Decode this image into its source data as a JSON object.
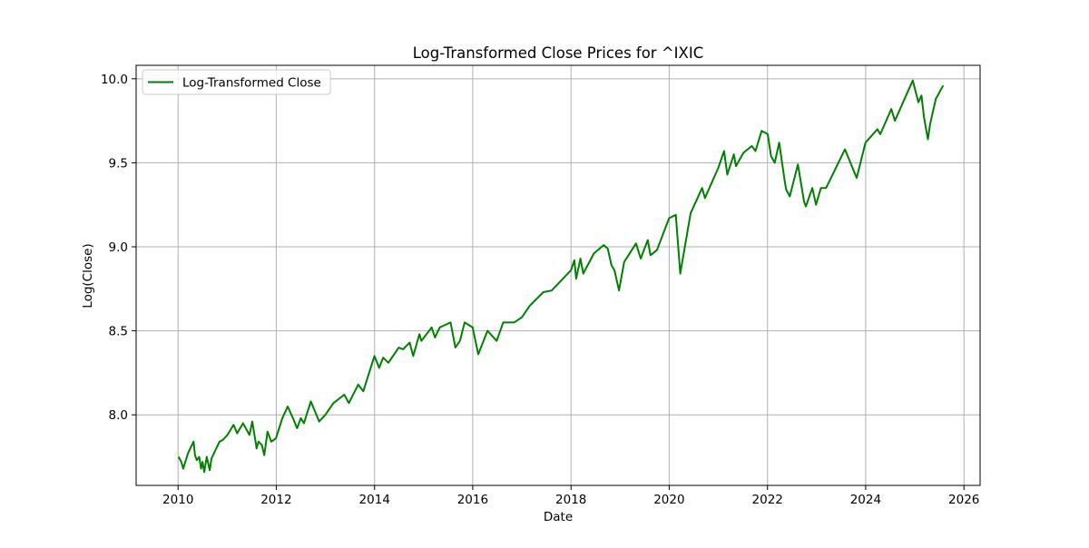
{
  "chart_data": {
    "type": "line",
    "title": "Log-Transformed Close Prices for ^IXIC",
    "xlabel": "Date",
    "ylabel": "Log(Close)",
    "xlim": [
      "2009-02-23",
      "2026-05-01"
    ],
    "ylim": [
      7.58,
      10.08
    ],
    "grid": true,
    "legend_position": "top-left",
    "x_ticks": [
      "2010",
      "2012",
      "2014",
      "2016",
      "2018",
      "2020",
      "2022",
      "2024",
      "2026"
    ],
    "y_ticks": [
      "8.0",
      "8.5",
      "9.0",
      "9.5",
      "10.0"
    ],
    "colors": {
      "line": "#008000",
      "grid": "#b0b0b0",
      "axes": "#000000",
      "legend_border": "#cccccc"
    },
    "series": [
      {
        "name": "Log-Transformed Close",
        "x": [
          "2010-01-04",
          "2010-01-25",
          "2010-02-08",
          "2010-03-15",
          "2010-04-01",
          "2010-04-26",
          "2010-05-07",
          "2010-05-20",
          "2010-06-07",
          "2010-06-21",
          "2010-07-02",
          "2010-07-15",
          "2010-08-02",
          "2010-08-24",
          "2010-09-06",
          "2010-09-30",
          "2010-11-05",
          "2010-11-29",
          "2011-01-03",
          "2011-02-18",
          "2011-03-16",
          "2011-04-29",
          "2011-06-16",
          "2011-07-07",
          "2011-08-08",
          "2011-08-22",
          "2011-09-16",
          "2011-10-04",
          "2011-10-28",
          "2011-11-25",
          "2011-12-30",
          "2012-02-15",
          "2012-03-26",
          "2012-05-04",
          "2012-06-04",
          "2012-07-02",
          "2012-07-25",
          "2012-09-14",
          "2012-11-15",
          "2012-12-31",
          "2013-03-01",
          "2013-05-21",
          "2013-06-24",
          "2013-09-01",
          "2013-10-09",
          "2013-12-31",
          "2014-02-04",
          "2014-03-06",
          "2014-04-14",
          "2014-06-30",
          "2014-08-01",
          "2014-09-19",
          "2014-10-15",
          "2014-12-01",
          "2014-12-16",
          "2015-03-02",
          "2015-03-26",
          "2015-05-01",
          "2015-07-20",
          "2015-08-25",
          "2015-09-28",
          "2015-11-02",
          "2015-12-31",
          "2016-02-11",
          "2016-04-20",
          "2016-06-27",
          "2016-08-15",
          "2016-11-04",
          "2016-12-31",
          "2017-03-01",
          "2017-06-09",
          "2017-08-10",
          "2017-12-31",
          "2018-01-26",
          "2018-02-08",
          "2018-03-12",
          "2018-04-02",
          "2018-06-20",
          "2018-08-31",
          "2018-10-01",
          "2018-10-29",
          "2018-11-20",
          "2018-12-24",
          "2019-01-31",
          "2019-04-30",
          "2019-06-03",
          "2019-07-26",
          "2019-08-15",
          "2019-10-02",
          "2019-12-31",
          "2020-02-19",
          "2020-03-23",
          "2020-06-08",
          "2020-09-02",
          "2020-09-23",
          "2020-12-31",
          "2021-02-12",
          "2021-03-08",
          "2021-04-26",
          "2021-05-12",
          "2021-07-07",
          "2021-09-07",
          "2021-10-04",
          "2021-11-19",
          "2022-01-03",
          "2022-01-27",
          "2022-02-24",
          "2022-03-29",
          "2022-05-11",
          "2022-05-20",
          "2022-06-16",
          "2022-08-15",
          "2022-09-30",
          "2022-10-13",
          "2022-11-30",
          "2022-12-28",
          "2023-02-02",
          "2023-03-13",
          "2023-06-30",
          "2023-07-31",
          "2023-10-26",
          "2023-12-31",
          "2024-03-28",
          "2024-04-19",
          "2024-07-10",
          "2024-08-05",
          "2024-12-16",
          "2025-01-27",
          "2025-02-19",
          "2025-03-10",
          "2025-04-08",
          "2025-04-24",
          "2025-06-06",
          "2025-07-31"
        ],
        "values": [
          7.75,
          7.72,
          7.68,
          7.77,
          7.8,
          7.84,
          7.76,
          7.73,
          7.75,
          7.68,
          7.72,
          7.66,
          7.75,
          7.67,
          7.74,
          7.78,
          7.84,
          7.85,
          7.88,
          7.94,
          7.89,
          7.95,
          7.88,
          7.96,
          7.8,
          7.84,
          7.82,
          7.76,
          7.9,
          7.84,
          7.86,
          7.98,
          8.05,
          7.98,
          7.92,
          7.98,
          7.95,
          8.08,
          7.96,
          8.0,
          8.07,
          8.12,
          8.07,
          8.18,
          8.14,
          8.35,
          8.28,
          8.34,
          8.31,
          8.4,
          8.39,
          8.43,
          8.35,
          8.48,
          8.44,
          8.52,
          8.46,
          8.52,
          8.55,
          8.4,
          8.44,
          8.55,
          8.52,
          8.36,
          8.5,
          8.44,
          8.55,
          8.55,
          8.58,
          8.65,
          8.73,
          8.74,
          8.86,
          8.92,
          8.81,
          8.93,
          8.84,
          8.96,
          9.01,
          8.99,
          8.89,
          8.86,
          8.74,
          8.91,
          9.02,
          8.93,
          9.04,
          8.95,
          8.98,
          9.17,
          9.19,
          8.84,
          9.2,
          9.35,
          9.29,
          9.47,
          9.57,
          9.43,
          9.55,
          9.48,
          9.56,
          9.6,
          9.57,
          9.69,
          9.67,
          9.54,
          9.5,
          9.62,
          9.38,
          9.34,
          9.3,
          9.49,
          9.27,
          9.24,
          9.35,
          9.25,
          9.35,
          9.35,
          9.53,
          9.58,
          9.41,
          9.62,
          9.7,
          9.67,
          9.82,
          9.75,
          9.99,
          9.86,
          9.9,
          9.77,
          9.64,
          9.73,
          9.88,
          9.96
        ]
      }
    ]
  }
}
